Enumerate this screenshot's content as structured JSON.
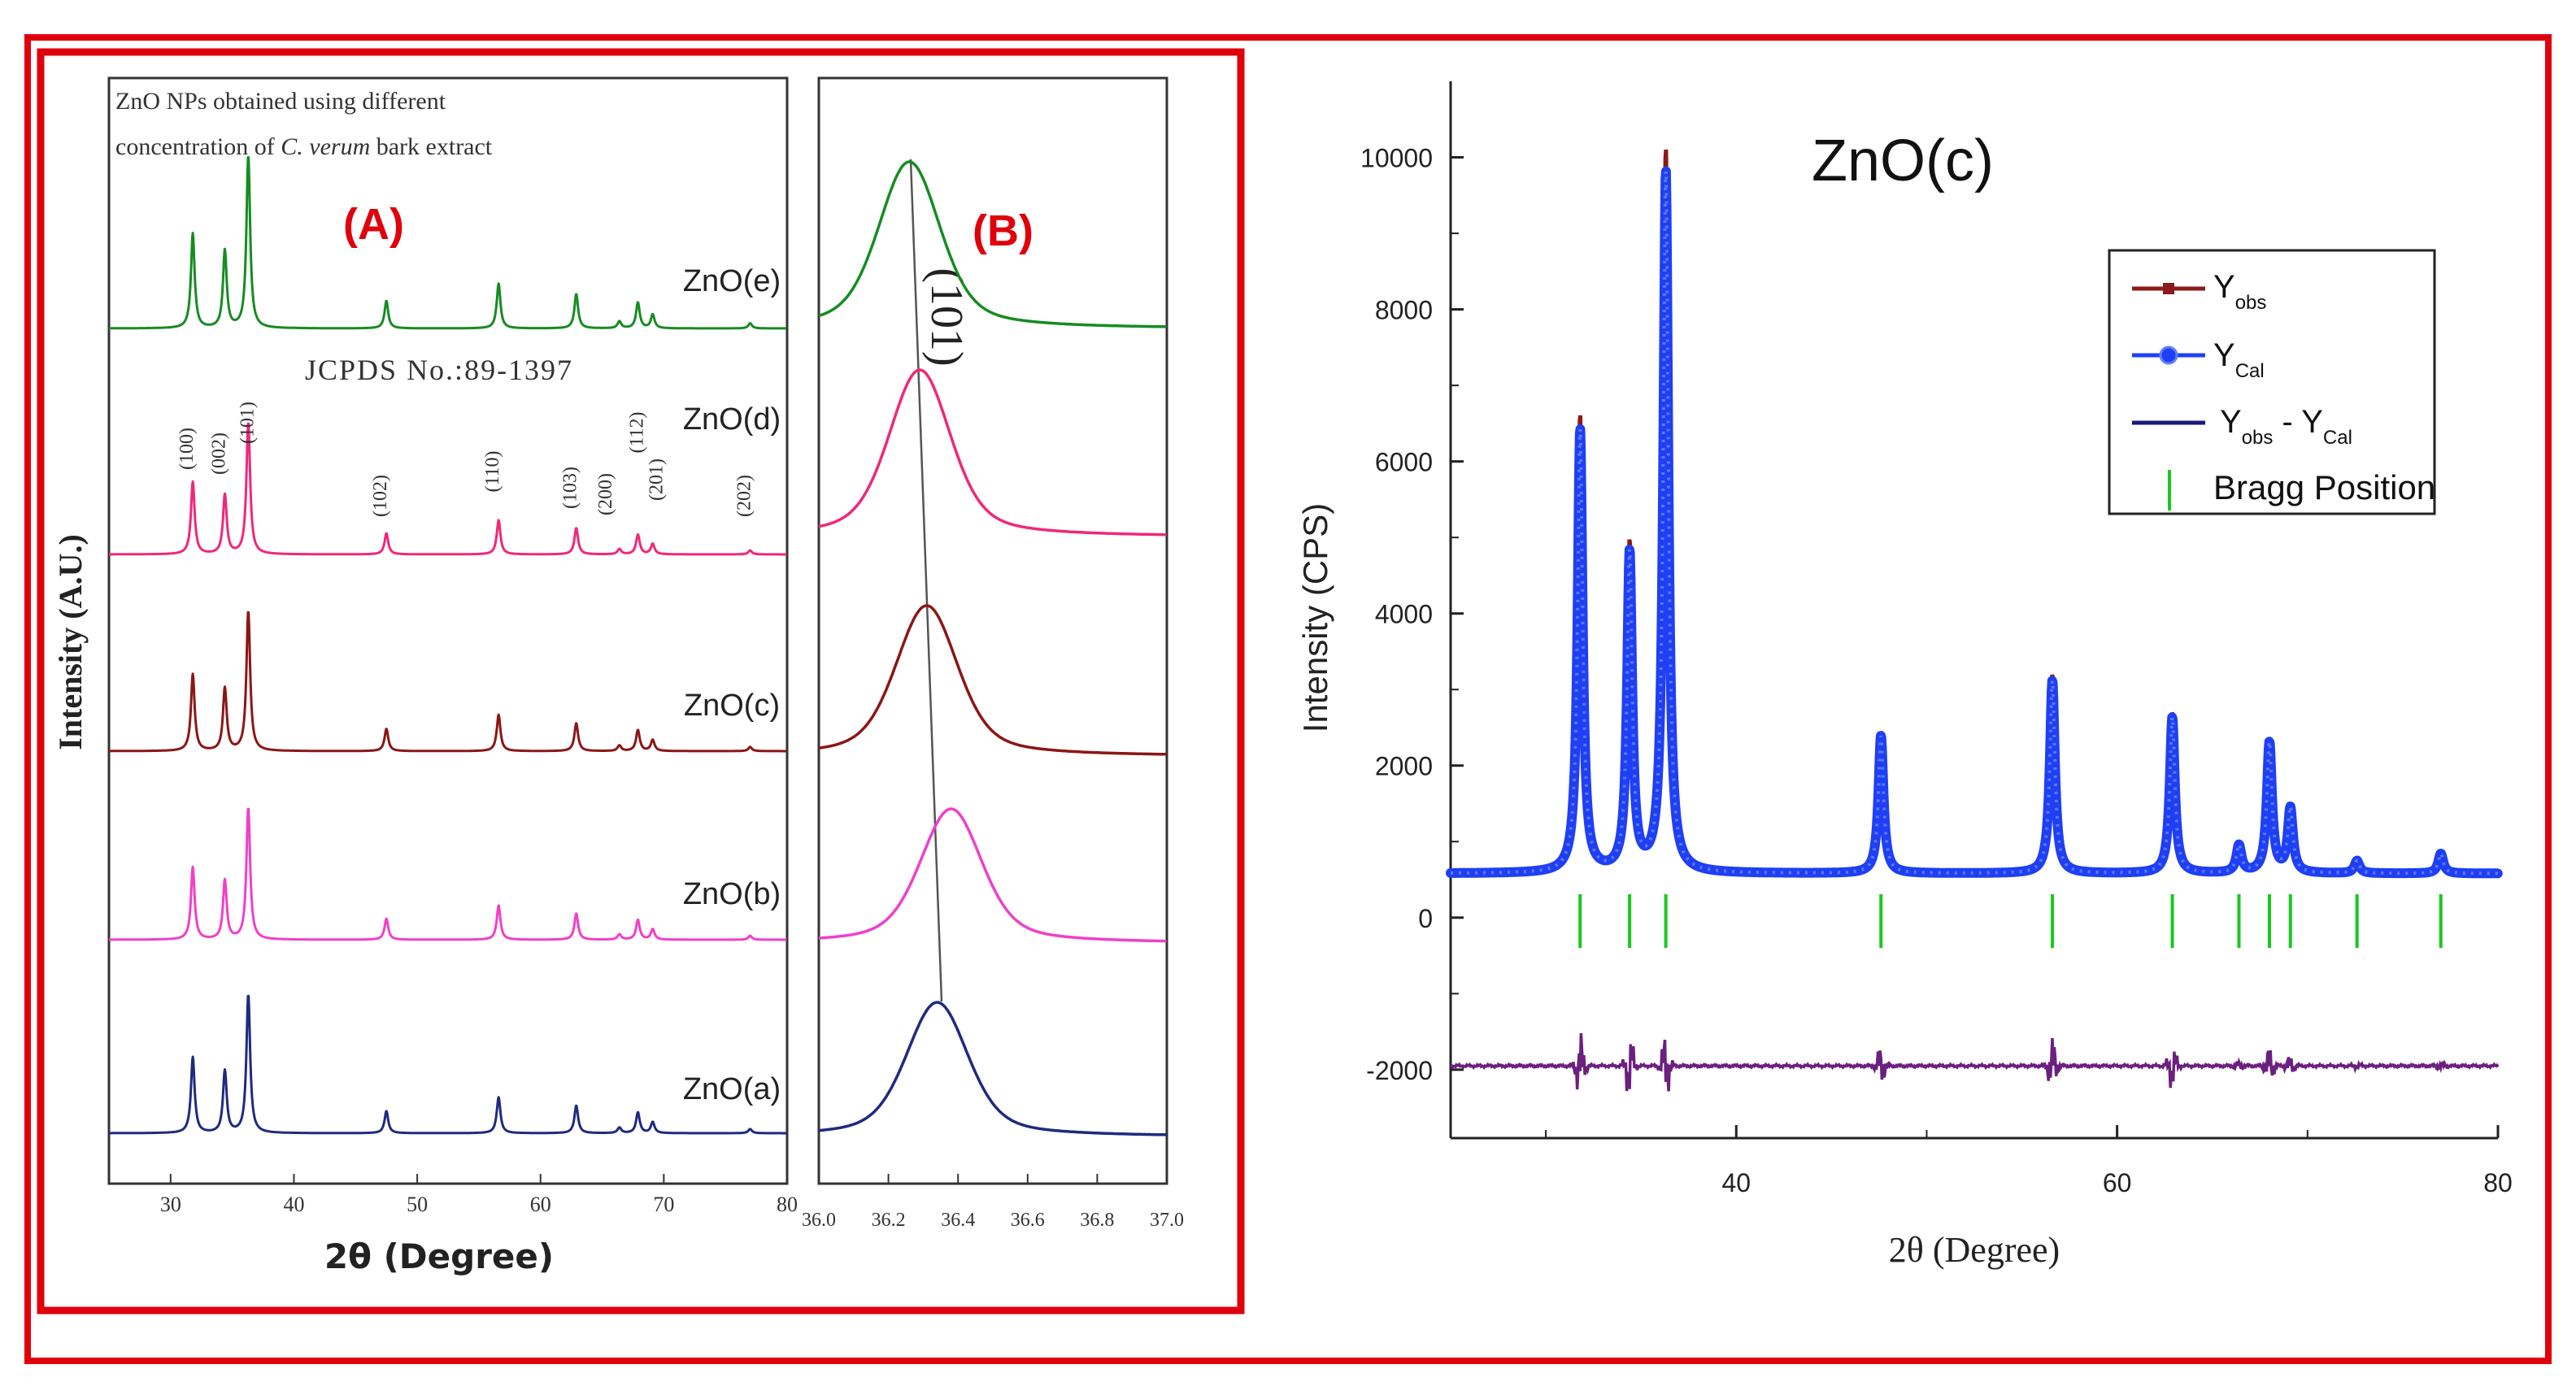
{
  "colors": {
    "frame": "#e0000c",
    "ZnO(a)": "#1f2a80",
    "ZnO(b)": "#f040c8",
    "ZnO(c)": "#8c1616",
    "ZnO(d)": "#f0287a",
    "ZnO(e)": "#168c22",
    "yobs": "#8b1a1a",
    "ycal": "#1f3ff5",
    "diff": "#6b2080",
    "bragg": "#19c81e",
    "panel_label": "#e0000c"
  },
  "panelA": {
    "note_line1": "ZnO NPs obtained using different",
    "note_line2_pre": "concentration of ",
    "note_line2_italic": "C. verum",
    "note_line2_post": " bark extract",
    "label": "(A)",
    "jcpds": "JCPDS No.:89-1397",
    "ylabel": "Intensity (A.U.)",
    "xlabel": "2θ (Degree)",
    "xticks": [
      "30",
      "40",
      "50",
      "60",
      "70",
      "80"
    ]
  },
  "panelB": {
    "label": "(B)",
    "peak_label": "(101)",
    "xticks": [
      "36.0",
      "36.2",
      "36.4",
      "36.6",
      "36.8",
      "37.0"
    ]
  },
  "panelC": {
    "title": "ZnO(c)",
    "ylabel": "Intensity (CPS)",
    "xlabel": "2θ (Degree)",
    "yticks": [
      "10000",
      "8000",
      "6000",
      "4000",
      "2000",
      "0",
      "-2000"
    ],
    "xticks": [
      "40",
      "60",
      "80"
    ],
    "legend": {
      "yobs_base": "Y",
      "yobs_sub": "obs",
      "ycal_base": "Y",
      "ycal_sub": "Cal",
      "diff_base1": "Y",
      "diff_sub1": "obs",
      "diff_mid": " - Y",
      "diff_sub2": "Cal",
      "bragg": "Bragg Position"
    }
  },
  "chart_data": [
    {
      "type": "line",
      "title": "(A)",
      "xlabel": "2θ (Degree)",
      "ylabel": "Intensity (A.U.)",
      "xlim": [
        25,
        80
      ],
      "series": [
        {
          "name": "ZnO(a)"
        },
        {
          "name": "ZnO(b)"
        },
        {
          "name": "ZnO(c)"
        },
        {
          "name": "ZnO(d)"
        },
        {
          "name": "ZnO(e)"
        }
      ],
      "peaks": [
        {
          "hkl": "(100)",
          "two_theta": 31.8,
          "rel": 0.55
        },
        {
          "hkl": "(002)",
          "two_theta": 34.4,
          "rel": 0.45
        },
        {
          "hkl": "(101)",
          "two_theta": 36.3,
          "rel": 1.0
        },
        {
          "hkl": "(102)",
          "two_theta": 47.5,
          "rel": 0.16
        },
        {
          "hkl": "(110)",
          "two_theta": 56.6,
          "rel": 0.26
        },
        {
          "hkl": "(103)",
          "two_theta": 62.9,
          "rel": 0.2
        },
        {
          "hkl": "(200)",
          "two_theta": 66.4,
          "rel": 0.04
        },
        {
          "hkl": "(112)",
          "two_theta": 67.9,
          "rel": 0.15
        },
        {
          "hkl": "(201)",
          "two_theta": 69.1,
          "rel": 0.08
        },
        {
          "hkl": "(202)",
          "two_theta": 77.0,
          "rel": 0.03
        }
      ],
      "annotation": "JCPDS No.:89-1397"
    },
    {
      "type": "line",
      "title": "(B)",
      "xlim": [
        36.0,
        37.0
      ],
      "annotation": "(101)",
      "series": [
        {
          "name": "ZnO(a)",
          "peak_center": 36.34
        },
        {
          "name": "ZnO(b)",
          "peak_center": 36.38
        },
        {
          "name": "ZnO(c)",
          "peak_center": 36.31
        },
        {
          "name": "ZnO(d)",
          "peak_center": 36.29
        },
        {
          "name": "ZnO(e)",
          "peak_center": 36.26
        }
      ]
    },
    {
      "type": "line",
      "title": "ZnO(c)",
      "xlabel": "2θ (Degree)",
      "ylabel": "Intensity (CPS)",
      "xlim": [
        25,
        80
      ],
      "ylim": [
        -2900,
        11000
      ],
      "baseline": 580,
      "diff_offset": -1950,
      "peaks": [
        {
          "two_theta": 31.8,
          "y": 6600
        },
        {
          "two_theta": 34.4,
          "y": 4900
        },
        {
          "two_theta": 36.3,
          "y": 10100
        },
        {
          "two_theta": 47.6,
          "y": 2450
        },
        {
          "two_theta": 56.6,
          "y": 3200
        },
        {
          "two_theta": 62.9,
          "y": 2700
        },
        {
          "two_theta": 66.4,
          "y": 950
        },
        {
          "two_theta": 68.0,
          "y": 2350
        },
        {
          "two_theta": 69.1,
          "y": 1450
        },
        {
          "two_theta": 72.6,
          "y": 750
        },
        {
          "two_theta": 77.0,
          "y": 850
        }
      ],
      "bragg_positions": [
        31.8,
        34.4,
        36.3,
        47.6,
        56.6,
        62.9,
        66.4,
        68.0,
        69.1,
        72.6,
        77.0
      ]
    }
  ]
}
